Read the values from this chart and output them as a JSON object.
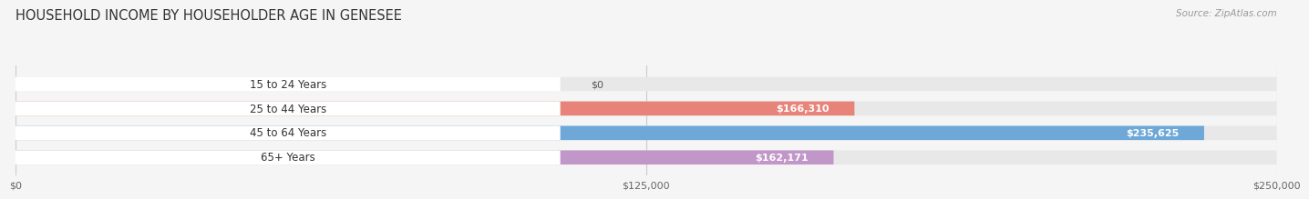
{
  "title": "HOUSEHOLD INCOME BY HOUSEHOLDER AGE IN GENESEE",
  "source_text": "Source: ZipAtlas.com",
  "categories": [
    "15 to 24 Years",
    "25 to 44 Years",
    "45 to 64 Years",
    "65+ Years"
  ],
  "values": [
    0,
    166310,
    235625,
    162171
  ],
  "value_labels": [
    "$0",
    "$166,310",
    "$235,625",
    "$162,171"
  ],
  "bar_colors": [
    "#f5c99a",
    "#e8837a",
    "#6ea8d8",
    "#c196c8"
  ],
  "bar_bg_color": "#e8e8e8",
  "xlim": [
    0,
    250000
  ],
  "xticks": [
    0,
    125000,
    250000
  ],
  "xtick_labels": [
    "$0",
    "$125,000",
    "$250,000"
  ],
  "title_fontsize": 10.5,
  "source_fontsize": 7.5,
  "bar_height": 0.58,
  "fig_width": 14.06,
  "fig_height": 2.33,
  "background_color": "#f5f5f5"
}
